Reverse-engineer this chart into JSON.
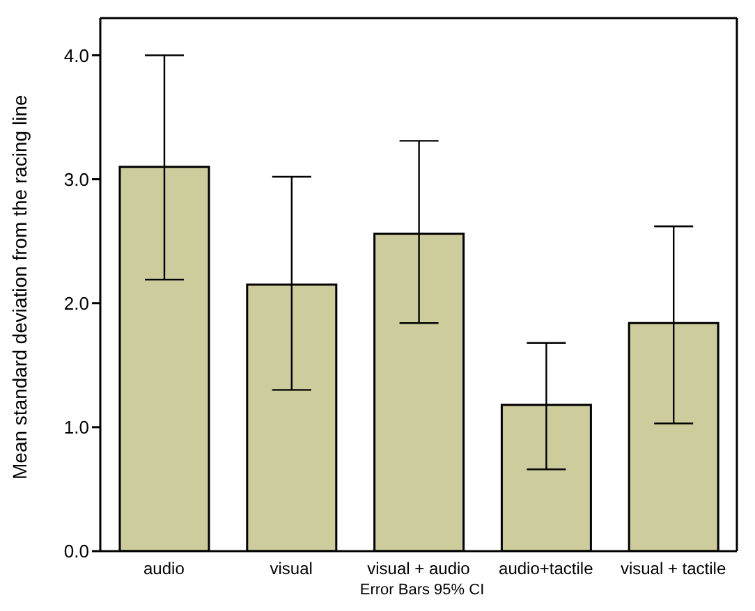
{
  "chart_data": {
    "type": "bar",
    "ylabel": "Mean standard deviation from the racing line",
    "annotations": [
      "Error Bars 95% CI"
    ],
    "categories": [
      "audio",
      "visual",
      "visual + audio",
      "audio+tactile",
      "visual + tactile"
    ],
    "values": [
      3.1,
      2.15,
      2.56,
      1.18,
      1.84
    ],
    "errors": [
      [
        2.19,
        4.0
      ],
      [
        1.3,
        3.02
      ],
      [
        1.84,
        3.31
      ],
      [
        0.66,
        1.68
      ],
      [
        1.03,
        2.62
      ]
    ],
    "color": "#cdcc9c",
    "ylim": [
      0,
      4.3
    ],
    "yticks": [
      {
        "value": 0,
        "label": "0.0"
      },
      {
        "value": 1,
        "label": "1.0"
      },
      {
        "value": 2,
        "label": "2.0"
      },
      {
        "value": 3,
        "label": "3.0"
      },
      {
        "value": 4,
        "label": "4.0"
      }
    ],
    "grid": false,
    "legend": false
  }
}
